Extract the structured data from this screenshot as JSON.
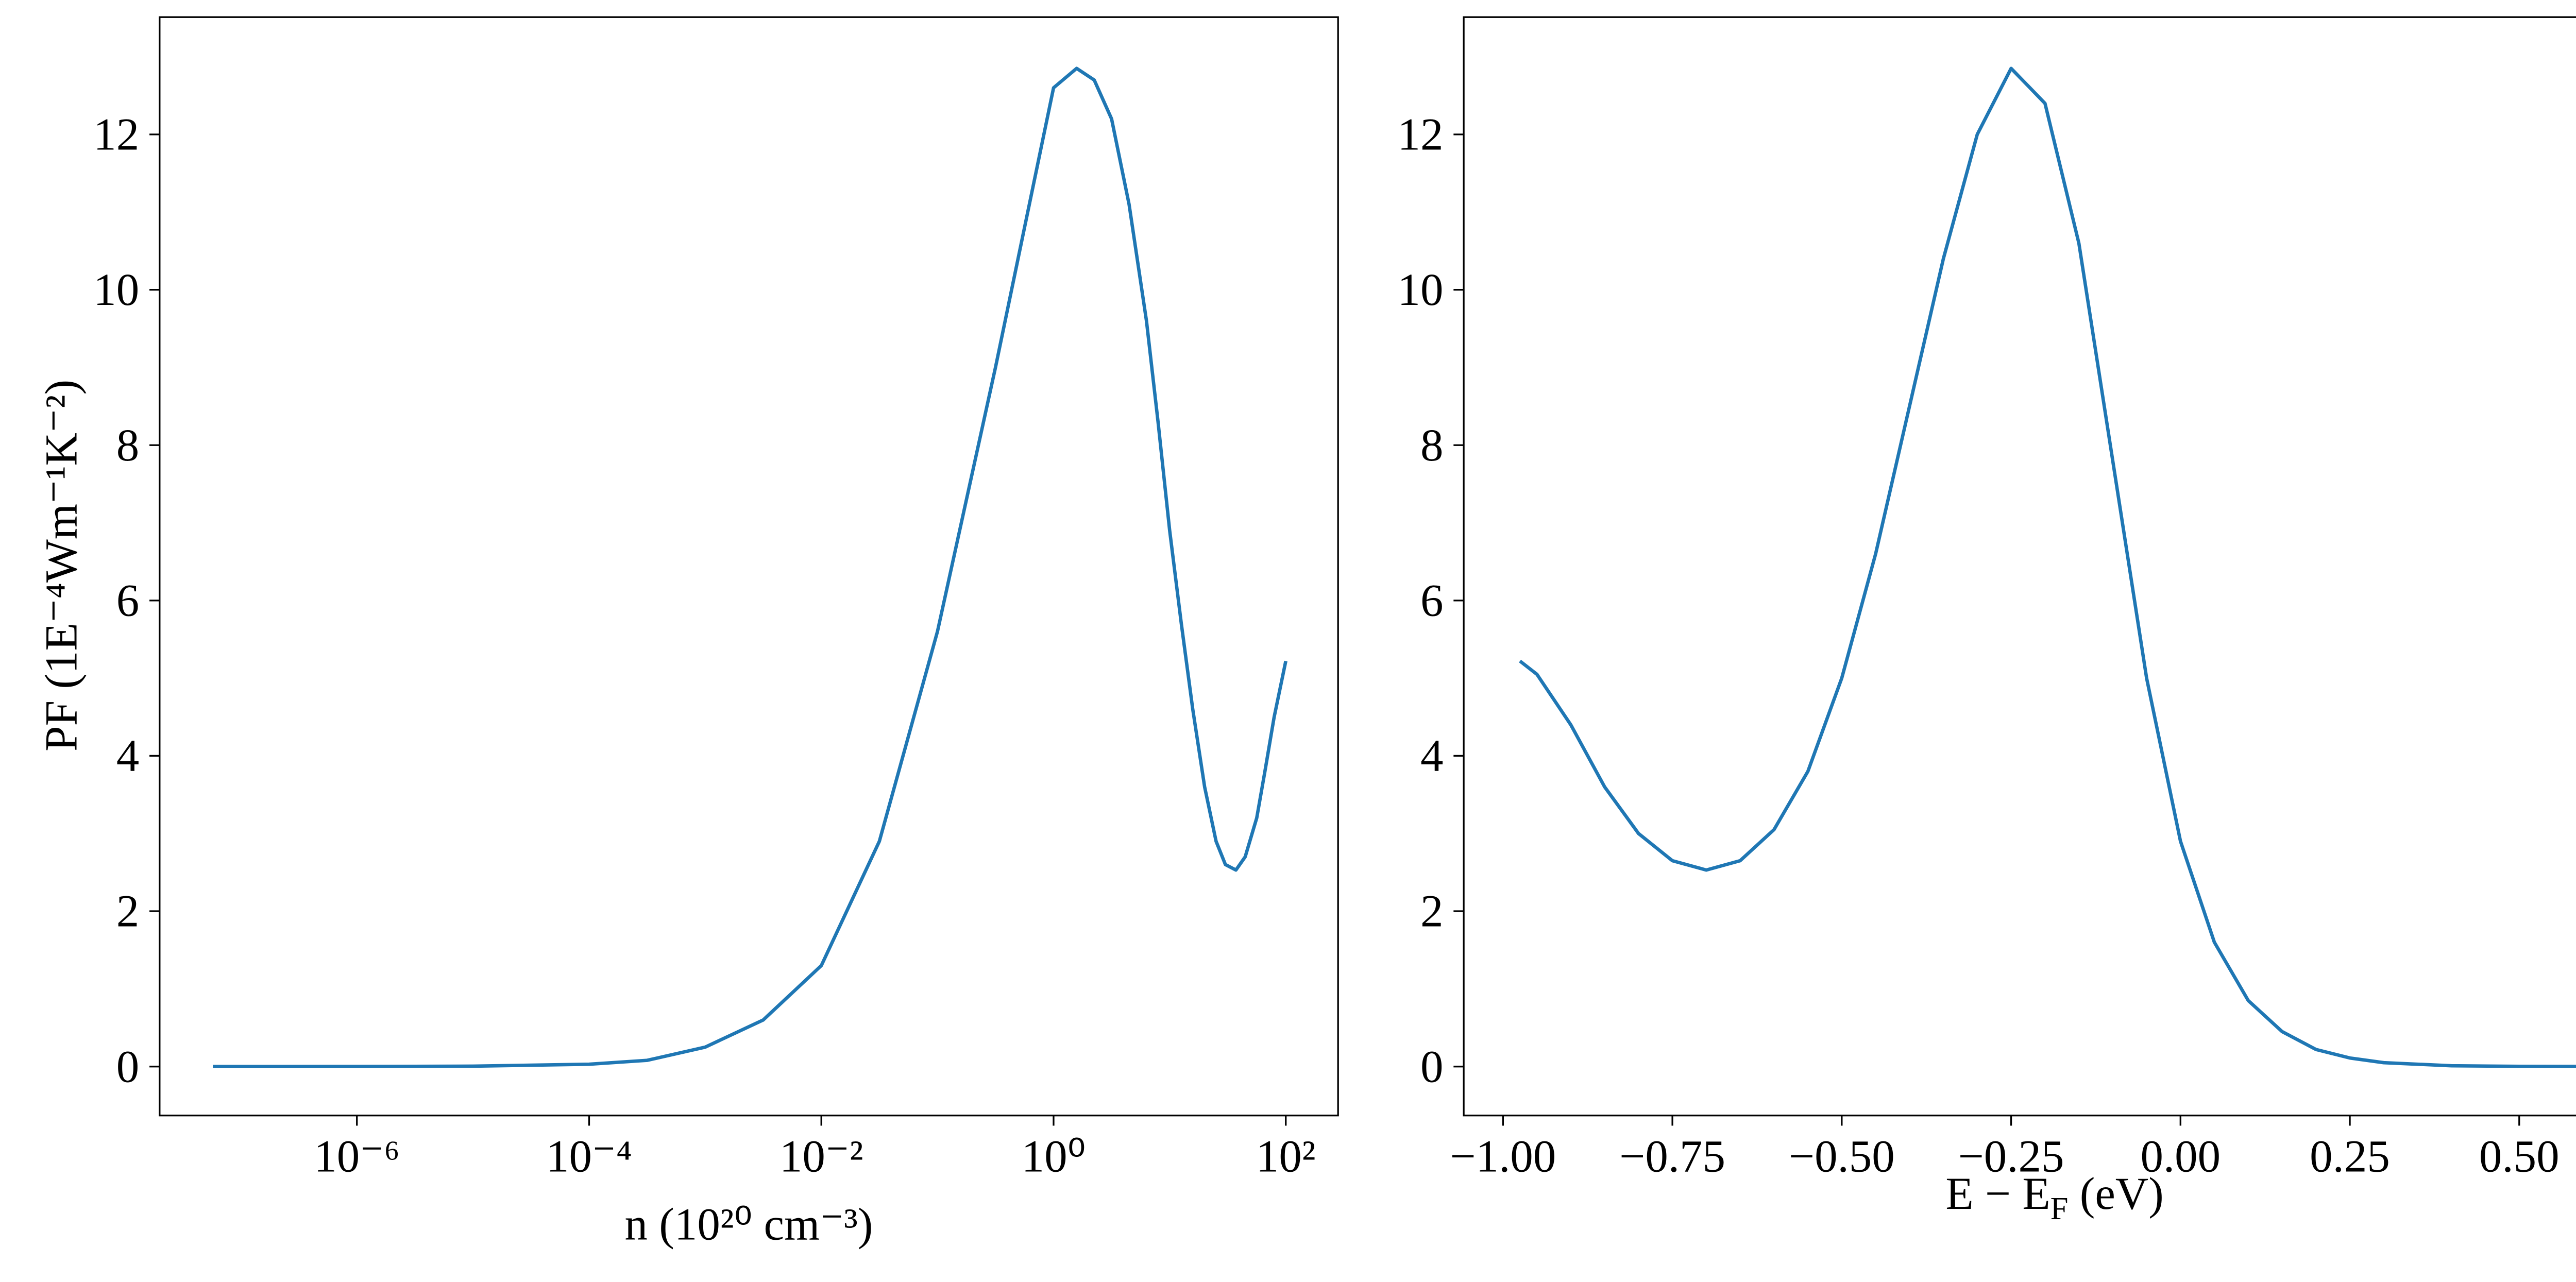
{
  "chart_data": [
    {
      "type": "line",
      "log_x": true,
      "xlabel": [
        "n (10²⁰ cm⁻³)"
      ],
      "ylabel": "PF (1E⁻⁴Wm⁻¹K⁻²)",
      "xlim": [
        2e-08,
        282
      ],
      "ylim": [
        -0.63,
        13.51
      ],
      "xticks": [
        {
          "value": 1e-06,
          "label": "10⁻⁶"
        },
        {
          "value": 0.0001,
          "label": "10⁻⁴"
        },
        {
          "value": 0.01,
          "label": "10⁻²"
        },
        {
          "value": 1,
          "label": "10⁰"
        },
        {
          "value": 100,
          "label": "10²"
        }
      ],
      "yticks": [
        0,
        2,
        4,
        6,
        8,
        10,
        12
      ],
      "x": [
        5.75e-08,
        1e-06,
        1e-05,
        0.0001,
        0.000316,
        0.001,
        0.00316,
        0.01,
        0.0316,
        0.1,
        0.316,
        0.562,
        1,
        1.58,
        2.24,
        3.16,
        4.47,
        6.31,
        7.94,
        10,
        12.6,
        15.8,
        20,
        25.1,
        30.2,
        37.2,
        44.7,
        56.2,
        66.1,
        79.4,
        100
      ],
      "series": [
        {
          "color": "#1f77b4",
          "values": [
            0,
            0.001,
            0.005,
            0.03,
            0.08,
            0.25,
            0.6,
            1.3,
            2.9,
            5.6,
            9.0,
            10.8,
            12.6,
            12.85,
            12.7,
            12.2,
            11.1,
            9.6,
            8.3,
            6.9,
            5.7,
            4.6,
            3.6,
            2.9,
            2.6,
            2.53,
            2.7,
            3.2,
            3.8,
            4.5,
            5.22
          ]
        }
      ]
    },
    {
      "type": "line",
      "log_x": false,
      "xlabel": [
        "E − E",
        "F",
        " (eV)"
      ],
      "xlim": [
        -1.058,
        0.684
      ],
      "ylim": [
        -0.63,
        13.51
      ],
      "xticks": [
        {
          "value": -1,
          "label": "−1.00"
        },
        {
          "value": -0.75,
          "label": "−0.75"
        },
        {
          "value": -0.5,
          "label": "−0.50"
        },
        {
          "value": -0.25,
          "label": "−0.25"
        },
        {
          "value": 0,
          "label": "0.00"
        },
        0.25,
        {
          "value": 0.5,
          "label": "0.50"
        }
      ],
      "yticks": [
        0,
        2,
        4,
        6,
        8,
        10,
        12
      ],
      "x": [
        -0.975,
        -0.95,
        -0.9,
        -0.85,
        -0.8,
        -0.75,
        -0.7,
        -0.65,
        -0.6,
        -0.55,
        -0.5,
        -0.45,
        -0.4,
        -0.35,
        -0.3,
        -0.25,
        -0.2,
        -0.15,
        -0.1,
        -0.05,
        0,
        0.05,
        0.1,
        0.15,
        0.2,
        0.25,
        0.3,
        0.4,
        0.5,
        0.609
      ],
      "series": [
        {
          "color": "#1f77b4",
          "values": [
            5.22,
            5.05,
            4.4,
            3.6,
            3.0,
            2.65,
            2.53,
            2.65,
            3.05,
            3.8,
            5.0,
            6.6,
            8.5,
            10.4,
            12.0,
            12.85,
            12.4,
            10.6,
            7.8,
            5.0,
            2.9,
            1.6,
            0.85,
            0.45,
            0.22,
            0.11,
            0.05,
            0.01,
            0.003,
            0.001
          ]
        }
      ]
    }
  ]
}
